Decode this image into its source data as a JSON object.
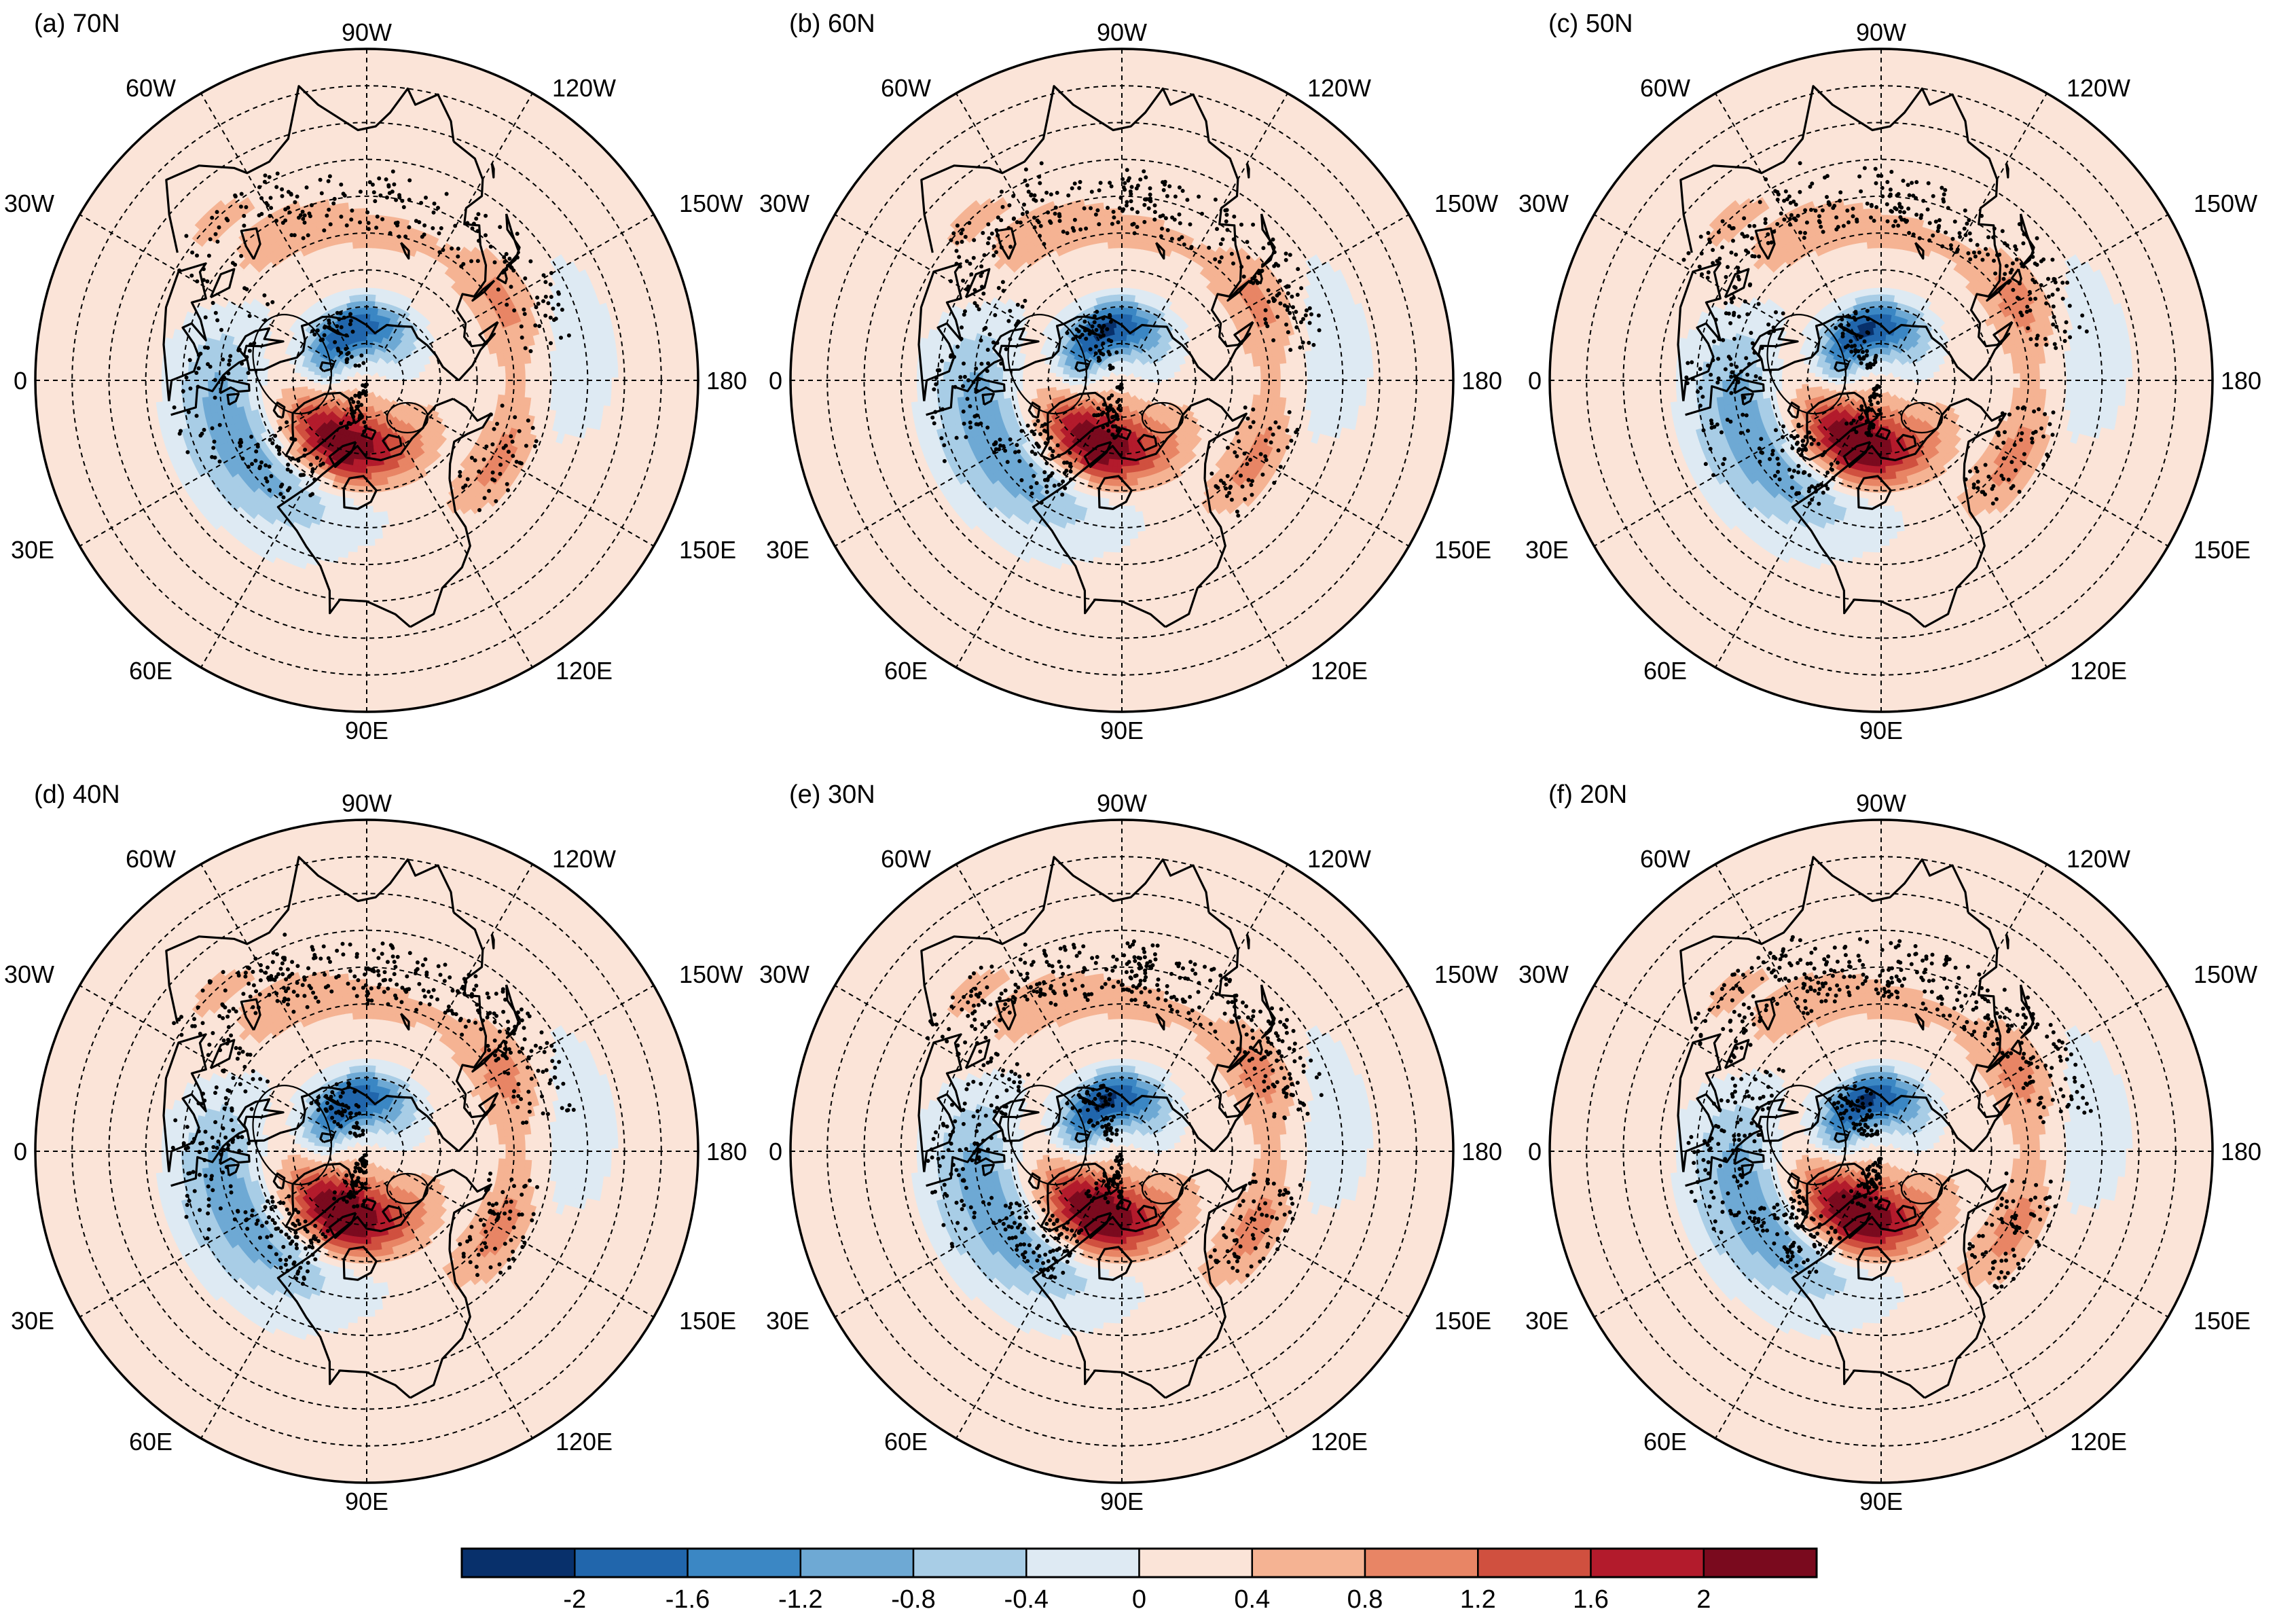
{
  "figure": {
    "panels": [
      {
        "label": "(a) 70N",
        "dot_density": 0.55,
        "pos_strength": 1.0,
        "neg_strength": 1.0
      },
      {
        "label": "(b) 60N",
        "dot_density": 0.7,
        "pos_strength": 1.0,
        "neg_strength": 1.05
      },
      {
        "label": "(c) 50N",
        "dot_density": 0.75,
        "pos_strength": 1.05,
        "neg_strength": 1.05
      },
      {
        "label": "(d) 40N",
        "dot_density": 0.85,
        "pos_strength": 1.05,
        "neg_strength": 1.0
      },
      {
        "label": "(e) 30N",
        "dot_density": 0.9,
        "pos_strength": 1.05,
        "neg_strength": 1.05
      },
      {
        "label": "(f) 20N",
        "dot_density": 0.9,
        "pos_strength": 1.05,
        "neg_strength": 1.05
      }
    ],
    "longitude_labels": {
      "top": "90W",
      "upper_left": "60W",
      "upper_right": "120W",
      "left_upper": "30W",
      "right_upper": "150W",
      "left": "0",
      "right": "180",
      "left_lower": "30E",
      "right_lower": "150E",
      "lower_left": "60E",
      "lower_right": "120E",
      "bottom": "90E"
    },
    "colorbar": {
      "ticks": [
        "-2",
        "-1.6",
        "-1.2",
        "-0.8",
        "-0.4",
        "0",
        "0.4",
        "0.8",
        "1.2",
        "1.6",
        "2"
      ],
      "colors": [
        "#08306b",
        "#2166ac",
        "#3b87c4",
        "#6ea9d4",
        "#a8cde6",
        "#deeaf3",
        "#fbe4d8",
        "#f5b393",
        "#e88565",
        "#d0503f",
        "#b31b2c",
        "#7a0a1e"
      ]
    }
  }
}
